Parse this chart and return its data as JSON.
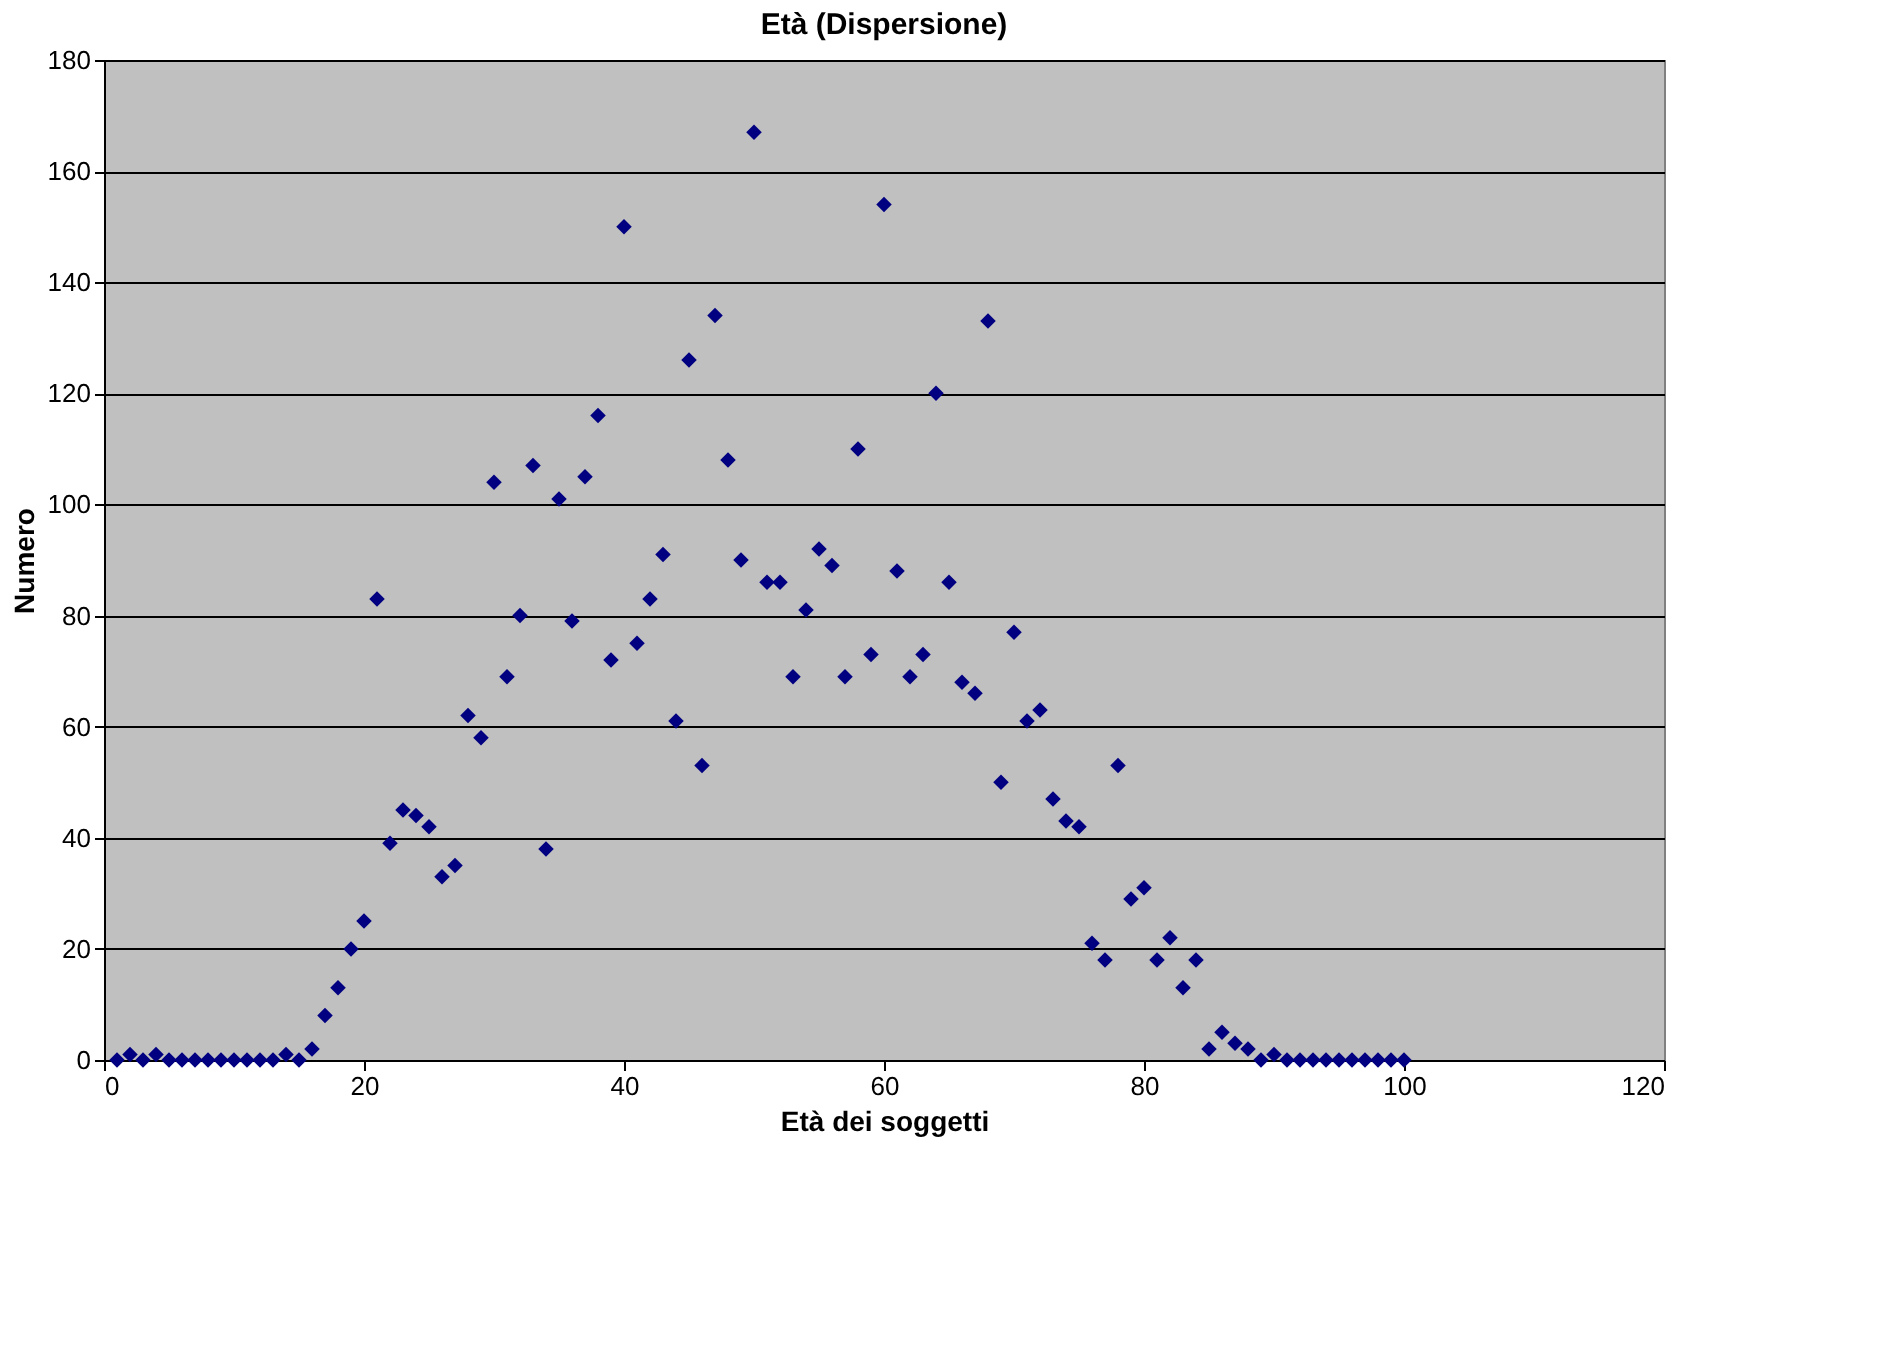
{
  "chart_data": {
    "type": "scatter",
    "title": "Età (Dispersione)",
    "xlabel": "Età dei soggetti",
    "ylabel": "Numero",
    "x": [
      1,
      2,
      3,
      4,
      5,
      6,
      7,
      8,
      9,
      10,
      11,
      12,
      13,
      14,
      15,
      16,
      17,
      18,
      19,
      20,
      21,
      22,
      23,
      24,
      25,
      26,
      27,
      28,
      29,
      30,
      31,
      32,
      33,
      34,
      35,
      36,
      37,
      38,
      39,
      40,
      41,
      42,
      43,
      44,
      45,
      46,
      47,
      48,
      49,
      50,
      51,
      52,
      53,
      54,
      55,
      56,
      57,
      58,
      59,
      60,
      61,
      62,
      63,
      64,
      65,
      66,
      67,
      68,
      69,
      70,
      71,
      72,
      73,
      74,
      75,
      76,
      77,
      78,
      79,
      80,
      81,
      82,
      83,
      84,
      85,
      86,
      87,
      88,
      89,
      90,
      91,
      92,
      93,
      94,
      95,
      96,
      97,
      98,
      99,
      100
    ],
    "series": [
      {
        "color": "#000080",
        "values": [
          0,
          1,
          0,
          1,
          0,
          0,
          0,
          0,
          0,
          0,
          0,
          0,
          0,
          1,
          0,
          2,
          8,
          13,
          20,
          25,
          83,
          39,
          45,
          44,
          42,
          33,
          35,
          62,
          58,
          104,
          69,
          80,
          107,
          38,
          101,
          79,
          105,
          116,
          72,
          150,
          75,
          83,
          91,
          61,
          126,
          53,
          134,
          108,
          90,
          167,
          86,
          86,
          69,
          81,
          92,
          89,
          69,
          110,
          73,
          154,
          88,
          69,
          73,
          120,
          86,
          68,
          66,
          133,
          50,
          77,
          61,
          63,
          47,
          43,
          42,
          21,
          18,
          53,
          29,
          31,
          18,
          22,
          13,
          18,
          2,
          5,
          3,
          2,
          0,
          1,
          0,
          0,
          0,
          0,
          0,
          0,
          0,
          0,
          0,
          0
        ]
      }
    ],
    "marker": "diamond",
    "grid": "y",
    "xlim": [
      0,
      120
    ],
    "xticks": [
      0,
      20,
      40,
      60,
      80,
      100,
      120
    ],
    "ylim": [
      0,
      180
    ],
    "yticks": [
      0,
      20,
      40,
      60,
      80,
      100,
      120,
      140,
      160,
      180
    ]
  }
}
